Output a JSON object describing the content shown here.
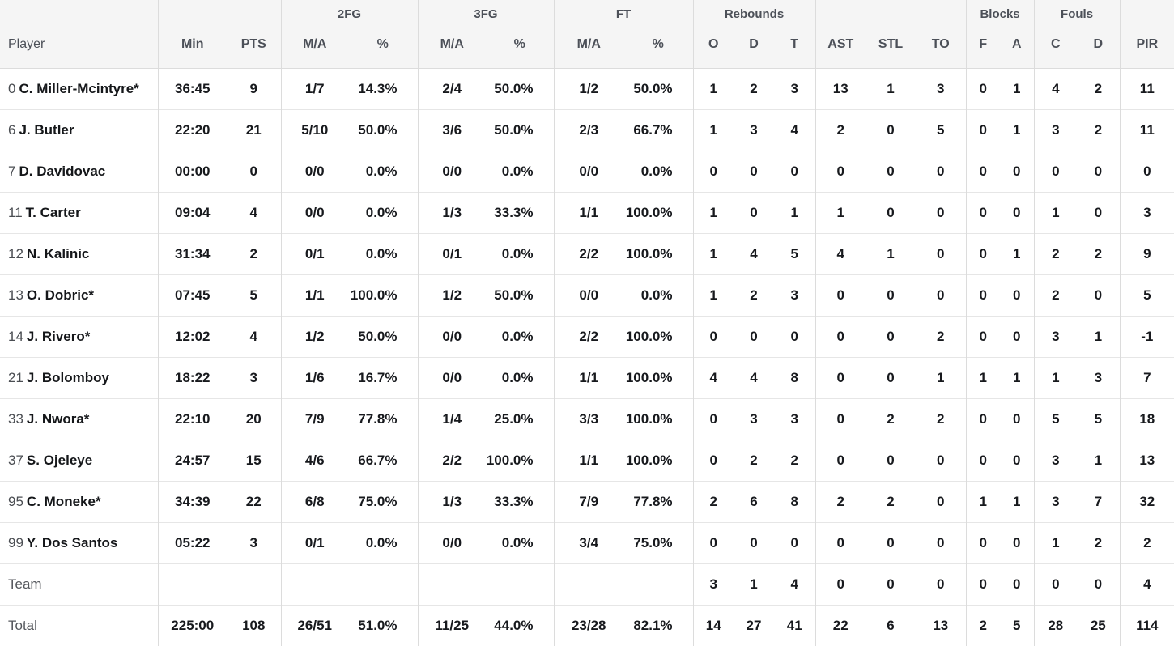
{
  "colors": {
    "header_bg": "#f5f5f5",
    "header_text": "#4c5058",
    "stat_text": "#17191d",
    "muted_text": "#54575c",
    "row_border": "#e6e6e6",
    "group_divider": "#dcdcdc"
  },
  "headers": {
    "player": "Player",
    "min": "Min",
    "pts": "PTS",
    "ma": "M/A",
    "pct": "%",
    "group_2fg": "2FG",
    "group_3fg": "3FG",
    "group_ft": "FT",
    "group_rebounds": "Rebounds",
    "group_blocks": "Blocks",
    "group_fouls": "Fouls",
    "reb_o": "O",
    "reb_d": "D",
    "reb_t": "T",
    "ast": "AST",
    "stl": "STL",
    "to": "TO",
    "blk_f": "F",
    "blk_a": "A",
    "foul_c": "C",
    "foul_d": "D",
    "pir": "PIR"
  },
  "table": {
    "rows": [
      {
        "type": "player",
        "num": "0",
        "name": "C. Miller-Mcintyre*",
        "min": "36:45",
        "pts": "9",
        "fg2_ma": "1/7",
        "fg2_pct": "14.3%",
        "fg3_ma": "2/4",
        "fg3_pct": "50.0%",
        "ft_ma": "1/2",
        "ft_pct": "50.0%",
        "reb_o": "1",
        "reb_d": "2",
        "reb_t": "3",
        "ast": "13",
        "stl": "1",
        "to": "3",
        "blk_f": "0",
        "blk_a": "1",
        "foul_c": "4",
        "foul_d": "2",
        "pir": "11"
      },
      {
        "type": "player",
        "num": "6",
        "name": "J. Butler",
        "min": "22:20",
        "pts": "21",
        "fg2_ma": "5/10",
        "fg2_pct": "50.0%",
        "fg3_ma": "3/6",
        "fg3_pct": "50.0%",
        "ft_ma": "2/3",
        "ft_pct": "66.7%",
        "reb_o": "1",
        "reb_d": "3",
        "reb_t": "4",
        "ast": "2",
        "stl": "0",
        "to": "5",
        "blk_f": "0",
        "blk_a": "1",
        "foul_c": "3",
        "foul_d": "2",
        "pir": "11"
      },
      {
        "type": "player",
        "num": "7",
        "name": "D. Davidovac",
        "min": "00:00",
        "pts": "0",
        "fg2_ma": "0/0",
        "fg2_pct": "0.0%",
        "fg3_ma": "0/0",
        "fg3_pct": "0.0%",
        "ft_ma": "0/0",
        "ft_pct": "0.0%",
        "reb_o": "0",
        "reb_d": "0",
        "reb_t": "0",
        "ast": "0",
        "stl": "0",
        "to": "0",
        "blk_f": "0",
        "blk_a": "0",
        "foul_c": "0",
        "foul_d": "0",
        "pir": "0"
      },
      {
        "type": "player",
        "num": "11",
        "name": "T. Carter",
        "min": "09:04",
        "pts": "4",
        "fg2_ma": "0/0",
        "fg2_pct": "0.0%",
        "fg3_ma": "1/3",
        "fg3_pct": "33.3%",
        "ft_ma": "1/1",
        "ft_pct": "100.0%",
        "reb_o": "1",
        "reb_d": "0",
        "reb_t": "1",
        "ast": "1",
        "stl": "0",
        "to": "0",
        "blk_f": "0",
        "blk_a": "0",
        "foul_c": "1",
        "foul_d": "0",
        "pir": "3"
      },
      {
        "type": "player",
        "num": "12",
        "name": "N. Kalinic",
        "min": "31:34",
        "pts": "2",
        "fg2_ma": "0/1",
        "fg2_pct": "0.0%",
        "fg3_ma": "0/1",
        "fg3_pct": "0.0%",
        "ft_ma": "2/2",
        "ft_pct": "100.0%",
        "reb_o": "1",
        "reb_d": "4",
        "reb_t": "5",
        "ast": "4",
        "stl": "1",
        "to": "0",
        "blk_f": "0",
        "blk_a": "1",
        "foul_c": "2",
        "foul_d": "2",
        "pir": "9"
      },
      {
        "type": "player",
        "num": "13",
        "name": "O. Dobric*",
        "min": "07:45",
        "pts": "5",
        "fg2_ma": "1/1",
        "fg2_pct": "100.0%",
        "fg3_ma": "1/2",
        "fg3_pct": "50.0%",
        "ft_ma": "0/0",
        "ft_pct": "0.0%",
        "reb_o": "1",
        "reb_d": "2",
        "reb_t": "3",
        "ast": "0",
        "stl": "0",
        "to": "0",
        "blk_f": "0",
        "blk_a": "0",
        "foul_c": "2",
        "foul_d": "0",
        "pir": "5"
      },
      {
        "type": "player",
        "num": "14",
        "name": "J. Rivero*",
        "min": "12:02",
        "pts": "4",
        "fg2_ma": "1/2",
        "fg2_pct": "50.0%",
        "fg3_ma": "0/0",
        "fg3_pct": "0.0%",
        "ft_ma": "2/2",
        "ft_pct": "100.0%",
        "reb_o": "0",
        "reb_d": "0",
        "reb_t": "0",
        "ast": "0",
        "stl": "0",
        "to": "2",
        "blk_f": "0",
        "blk_a": "0",
        "foul_c": "3",
        "foul_d": "1",
        "pir": "-1"
      },
      {
        "type": "player",
        "num": "21",
        "name": "J. Bolomboy",
        "min": "18:22",
        "pts": "3",
        "fg2_ma": "1/6",
        "fg2_pct": "16.7%",
        "fg3_ma": "0/0",
        "fg3_pct": "0.0%",
        "ft_ma": "1/1",
        "ft_pct": "100.0%",
        "reb_o": "4",
        "reb_d": "4",
        "reb_t": "8",
        "ast": "0",
        "stl": "0",
        "to": "1",
        "blk_f": "1",
        "blk_a": "1",
        "foul_c": "1",
        "foul_d": "3",
        "pir": "7"
      },
      {
        "type": "player",
        "num": "33",
        "name": "J. Nwora*",
        "min": "22:10",
        "pts": "20",
        "fg2_ma": "7/9",
        "fg2_pct": "77.8%",
        "fg3_ma": "1/4",
        "fg3_pct": "25.0%",
        "ft_ma": "3/3",
        "ft_pct": "100.0%",
        "reb_o": "0",
        "reb_d": "3",
        "reb_t": "3",
        "ast": "0",
        "stl": "2",
        "to": "2",
        "blk_f": "0",
        "blk_a": "0",
        "foul_c": "5",
        "foul_d": "5",
        "pir": "18"
      },
      {
        "type": "player",
        "num": "37",
        "name": "S. Ojeleye",
        "min": "24:57",
        "pts": "15",
        "fg2_ma": "4/6",
        "fg2_pct": "66.7%",
        "fg3_ma": "2/2",
        "fg3_pct": "100.0%",
        "ft_ma": "1/1",
        "ft_pct": "100.0%",
        "reb_o": "0",
        "reb_d": "2",
        "reb_t": "2",
        "ast": "0",
        "stl": "0",
        "to": "0",
        "blk_f": "0",
        "blk_a": "0",
        "foul_c": "3",
        "foul_d": "1",
        "pir": "13"
      },
      {
        "type": "player",
        "num": "95",
        "name": "C. Moneke*",
        "min": "34:39",
        "pts": "22",
        "fg2_ma": "6/8",
        "fg2_pct": "75.0%",
        "fg3_ma": "1/3",
        "fg3_pct": "33.3%",
        "ft_ma": "7/9",
        "ft_pct": "77.8%",
        "reb_o": "2",
        "reb_d": "6",
        "reb_t": "8",
        "ast": "2",
        "stl": "2",
        "to": "0",
        "blk_f": "1",
        "blk_a": "1",
        "foul_c": "3",
        "foul_d": "7",
        "pir": "32"
      },
      {
        "type": "player",
        "num": "99",
        "name": "Y. Dos Santos",
        "min": "05:22",
        "pts": "3",
        "fg2_ma": "0/1",
        "fg2_pct": "0.0%",
        "fg3_ma": "0/0",
        "fg3_pct": "0.0%",
        "ft_ma": "3/4",
        "ft_pct": "75.0%",
        "reb_o": "0",
        "reb_d": "0",
        "reb_t": "0",
        "ast": "0",
        "stl": "0",
        "to": "0",
        "blk_f": "0",
        "blk_a": "0",
        "foul_c": "1",
        "foul_d": "2",
        "pir": "2"
      },
      {
        "type": "team",
        "name": "Team",
        "min": "",
        "pts": "",
        "fg2_ma": "",
        "fg2_pct": "",
        "fg3_ma": "",
        "fg3_pct": "",
        "ft_ma": "",
        "ft_pct": "",
        "reb_o": "3",
        "reb_d": "1",
        "reb_t": "4",
        "ast": "0",
        "stl": "0",
        "to": "0",
        "blk_f": "0",
        "blk_a": "0",
        "foul_c": "0",
        "foul_d": "0",
        "pir": "4"
      },
      {
        "type": "total",
        "name": "Total",
        "min": "225:00",
        "pts": "108",
        "fg2_ma": "26/51",
        "fg2_pct": "51.0%",
        "fg3_ma": "11/25",
        "fg3_pct": "44.0%",
        "ft_ma": "23/28",
        "ft_pct": "82.1%",
        "reb_o": "14",
        "reb_d": "27",
        "reb_t": "41",
        "ast": "22",
        "stl": "6",
        "to": "13",
        "blk_f": "2",
        "blk_a": "5",
        "foul_c": "28",
        "foul_d": "25",
        "pir": "114"
      }
    ]
  }
}
